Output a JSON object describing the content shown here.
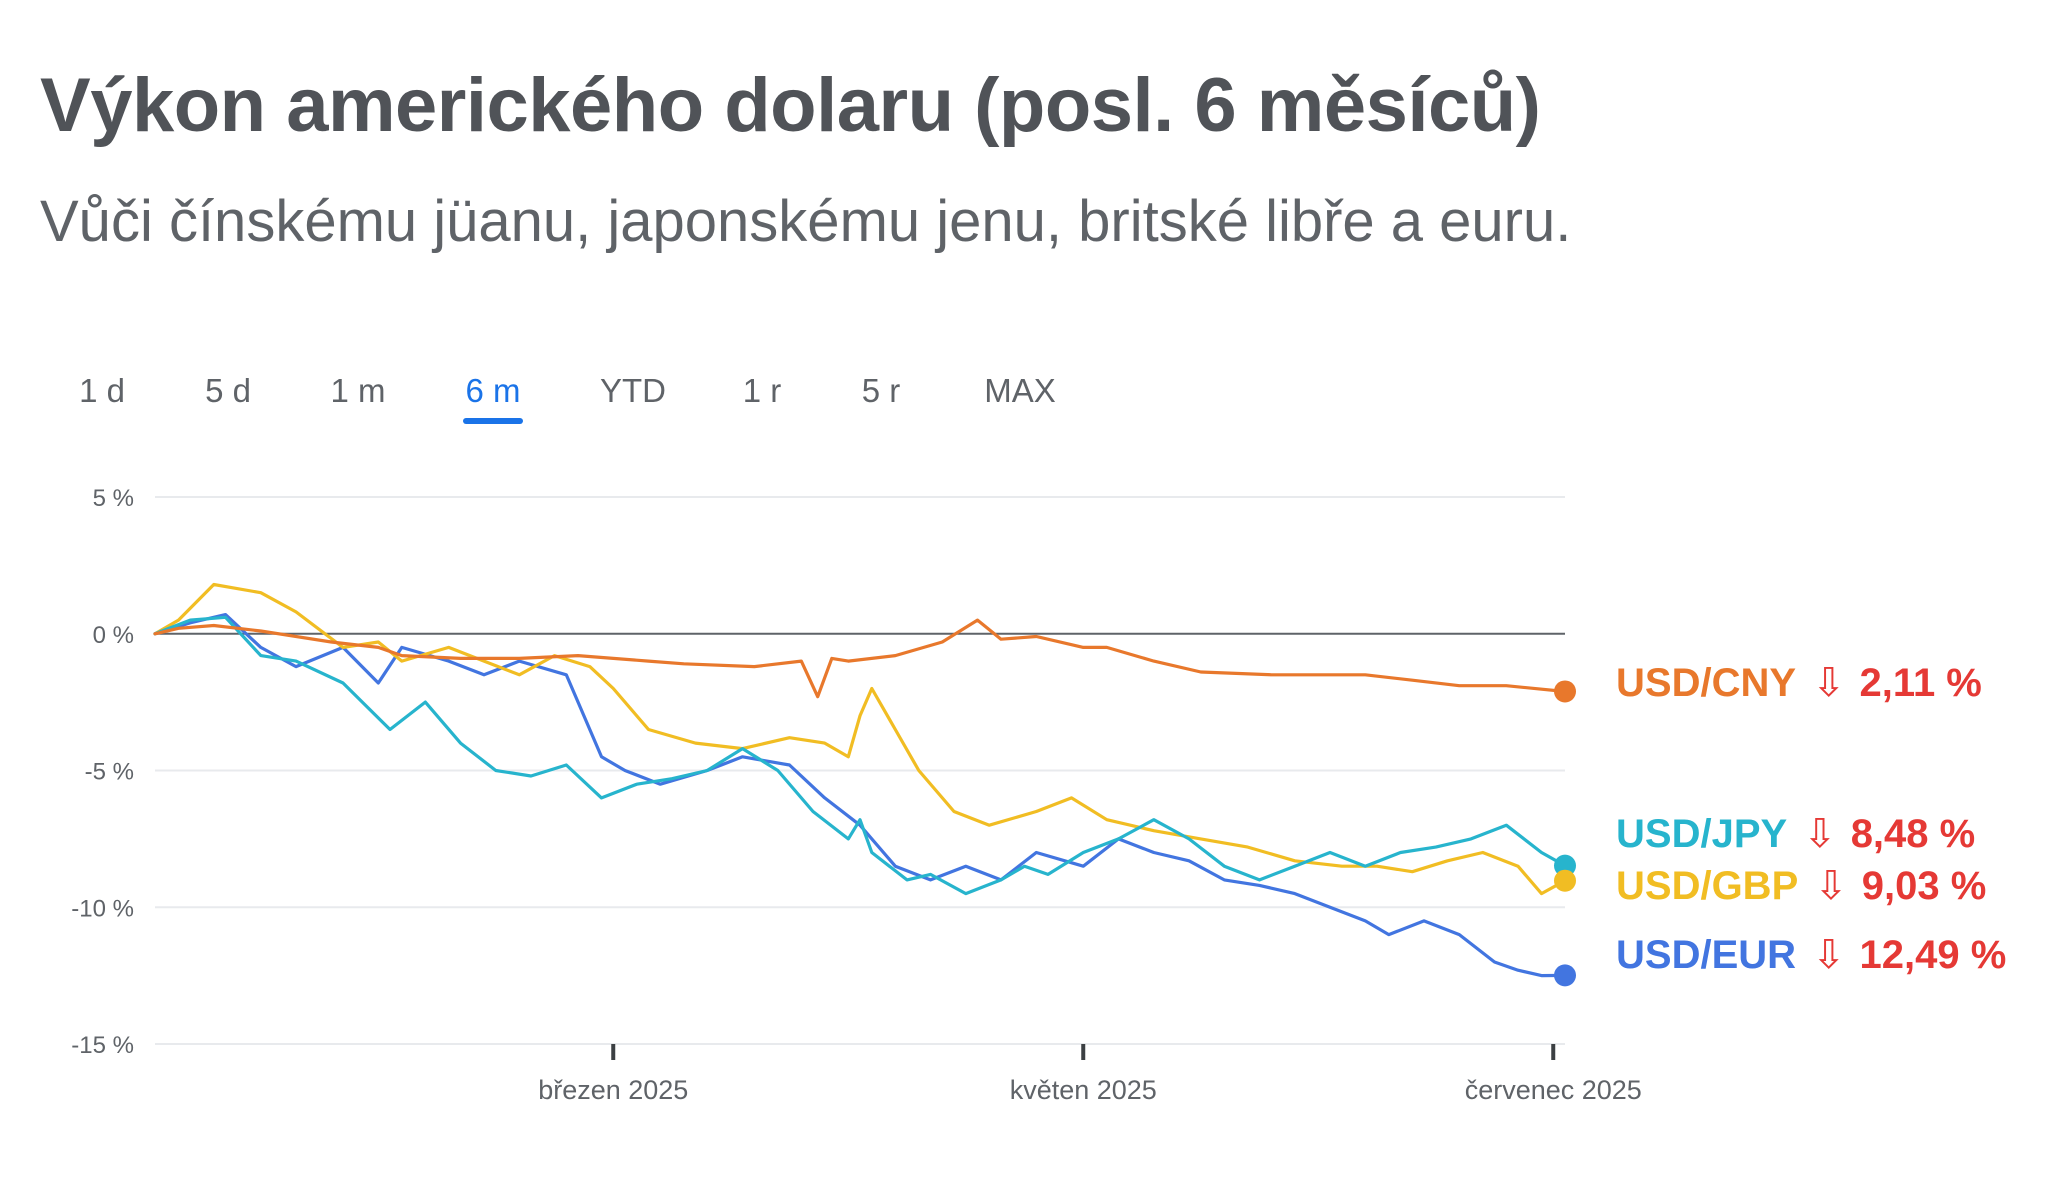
{
  "title": "Výkon amerického dolaru (posl. 6 měsíců)",
  "subtitle": "Vůči čínskému jüanu, japonskému jenu, britské libře a euru.",
  "time_ranges": [
    "1 d",
    "5 d",
    "1 m",
    "6 m",
    "YTD",
    "1 r",
    "5 r",
    "MAX"
  ],
  "active_range": "6 m",
  "colors": {
    "USD/CNY": "#e8782c",
    "USD/JPY": "#27b4cd",
    "USD/GBP": "#f1bd23",
    "USD/EUR": "#4275e0",
    "change_down": "#e53935",
    "zero_line": "#5f6368",
    "grid": "#e8eaed"
  },
  "chart_data": {
    "type": "line",
    "title": "Výkon amerického dolaru (posl. 6 měsíců)",
    "subtitle": "Vůči čínskému jüanu, japonskému jenu, britské libře a euru.",
    "x_unit": "month (2025)",
    "x_ticks": [
      {
        "value": 3,
        "label": "březen 2025"
      },
      {
        "value": 5,
        "label": "květen 2025"
      },
      {
        "value": 7,
        "label": "červenec 2025"
      }
    ],
    "xlim": [
      1.05,
      7.05
    ],
    "y_ticks": [
      {
        "value": 5,
        "label": "5 %"
      },
      {
        "value": 0,
        "label": "0 %"
      },
      {
        "value": -5,
        "label": "-5 %"
      },
      {
        "value": -10,
        "label": "-10 %"
      },
      {
        "value": -15,
        "label": "-15 %"
      }
    ],
    "ylim": [
      -15,
      5
    ],
    "ylabel": "",
    "xlabel": "",
    "grid": true,
    "legend": "end labels",
    "series": [
      {
        "name": "USD/CNY",
        "change_label": "2,11 %",
        "direction": "down",
        "x": [
          1.05,
          1.15,
          1.3,
          1.5,
          1.8,
          2.0,
          2.1,
          2.35,
          2.6,
          2.85,
          3.0,
          3.15,
          3.3,
          3.6,
          3.8,
          3.87,
          3.93,
          4.0,
          4.2,
          4.4,
          4.55,
          4.65,
          4.8,
          5.0,
          5.1,
          5.3,
          5.5,
          5.8,
          6.0,
          6.2,
          6.4,
          6.6,
          6.8,
          7.05
        ],
        "y": [
          0,
          0.2,
          0.3,
          0.1,
          -0.3,
          -0.5,
          -0.8,
          -0.9,
          -0.9,
          -0.8,
          -0.9,
          -1.0,
          -1.1,
          -1.2,
          -1.0,
          -2.3,
          -0.9,
          -1.0,
          -0.8,
          -0.3,
          0.5,
          -0.2,
          -0.1,
          -0.5,
          -0.5,
          -1.0,
          -1.4,
          -1.5,
          -1.5,
          -1.5,
          -1.7,
          -1.9,
          -1.9,
          -2.11
        ]
      },
      {
        "name": "USD/JPY",
        "change_label": "8,48 %",
        "direction": "down",
        "x": [
          1.05,
          1.2,
          1.35,
          1.5,
          1.65,
          1.85,
          2.05,
          2.2,
          2.35,
          2.5,
          2.65,
          2.8,
          2.95,
          3.1,
          3.25,
          3.4,
          3.55,
          3.7,
          3.85,
          4.0,
          4.05,
          4.1,
          4.25,
          4.35,
          4.5,
          4.65,
          4.75,
          4.85,
          5.0,
          5.15,
          5.3,
          5.45,
          5.6,
          5.75,
          5.9,
          6.05,
          6.2,
          6.35,
          6.5,
          6.65,
          6.8,
          6.95,
          7.05
        ],
        "y": [
          0,
          0.5,
          0.6,
          -0.8,
          -1.0,
          -1.8,
          -3.5,
          -2.5,
          -4.0,
          -5.0,
          -5.2,
          -4.8,
          -6.0,
          -5.5,
          -5.3,
          -5.0,
          -4.2,
          -5.0,
          -6.5,
          -7.5,
          -6.8,
          -8.0,
          -9.0,
          -8.8,
          -9.5,
          -9.0,
          -8.5,
          -8.8,
          -8.0,
          -7.5,
          -6.8,
          -7.5,
          -8.5,
          -9.0,
          -8.5,
          -8.0,
          -8.5,
          -8.0,
          -7.8,
          -7.5,
          -7.0,
          -8.0,
          -8.48
        ]
      },
      {
        "name": "USD/GBP",
        "change_label": "9,03 %",
        "direction": "down",
        "x": [
          1.05,
          1.15,
          1.3,
          1.5,
          1.65,
          1.85,
          2.0,
          2.1,
          2.3,
          2.45,
          2.6,
          2.75,
          2.9,
          3.0,
          3.15,
          3.35,
          3.55,
          3.75,
          3.9,
          4.0,
          4.05,
          4.1,
          4.2,
          4.3,
          4.45,
          4.6,
          4.8,
          4.95,
          5.1,
          5.3,
          5.5,
          5.7,
          5.9,
          6.1,
          6.25,
          6.4,
          6.55,
          6.7,
          6.85,
          6.95,
          7.05
        ],
        "y": [
          0,
          0.5,
          1.8,
          1.5,
          0.8,
          -0.5,
          -0.3,
          -1.0,
          -0.5,
          -1.0,
          -1.5,
          -0.8,
          -1.2,
          -2.0,
          -3.5,
          -4.0,
          -4.2,
          -3.8,
          -4.0,
          -4.5,
          -3.0,
          -2.0,
          -3.5,
          -5.0,
          -6.5,
          -7.0,
          -6.5,
          -6.0,
          -6.8,
          -7.2,
          -7.5,
          -7.8,
          -8.3,
          -8.5,
          -8.5,
          -8.7,
          -8.3,
          -8.0,
          -8.5,
          -9.5,
          -9.03
        ]
      },
      {
        "name": "USD/EUR",
        "change_label": "12,49 %",
        "direction": "down",
        "x": [
          1.05,
          1.2,
          1.35,
          1.5,
          1.65,
          1.85,
          2.0,
          2.1,
          2.3,
          2.45,
          2.6,
          2.8,
          2.95,
          3.05,
          3.2,
          3.4,
          3.55,
          3.75,
          3.9,
          4.05,
          4.2,
          4.35,
          4.5,
          4.65,
          4.8,
          5.0,
          5.15,
          5.3,
          5.45,
          5.6,
          5.75,
          5.9,
          6.05,
          6.2,
          6.3,
          6.45,
          6.6,
          6.75,
          6.85,
          6.95,
          7.05
        ],
        "y": [
          0,
          0.4,
          0.7,
          -0.5,
          -1.2,
          -0.5,
          -1.8,
          -0.5,
          -1.0,
          -1.5,
          -1.0,
          -1.5,
          -4.5,
          -5.0,
          -5.5,
          -5.0,
          -4.5,
          -4.8,
          -6.0,
          -7.0,
          -8.5,
          -9.0,
          -8.5,
          -9.0,
          -8.0,
          -8.5,
          -7.5,
          -8.0,
          -8.3,
          -9.0,
          -9.2,
          -9.5,
          -10.0,
          -10.5,
          -11.0,
          -10.5,
          -11.0,
          -12.0,
          -12.3,
          -12.5,
          -12.49
        ]
      }
    ]
  }
}
